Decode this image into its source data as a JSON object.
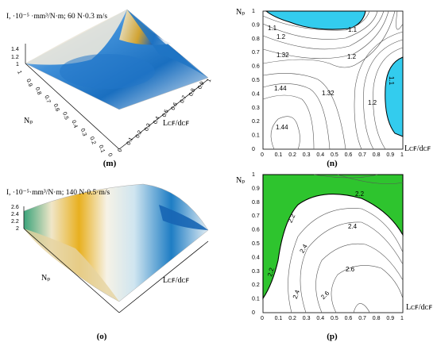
{
  "panels": {
    "m": {
      "title": "I, ·10⁻⁵ ·mm³/N·m; 60 N·0.3 m/s",
      "caption": "(m)",
      "z_ticks": [
        "1.4",
        "1.2",
        "1"
      ],
      "y_label": "Nₚ",
      "x_label": "Lᴄꜰ/dᴄꜰ",
      "y_ticks": [
        "1",
        "0.9",
        "0.8",
        "0.7",
        "0.6",
        "0.5",
        "0.4",
        "0.3",
        "0.2",
        "0.1",
        "0"
      ],
      "x_ticks": [
        "0",
        "0.1",
        "0.2",
        "0.3",
        "0.4",
        "0.5",
        "0.6",
        "0.7",
        "0.8",
        "0.9",
        "1"
      ]
    },
    "n": {
      "caption": "(n)",
      "y_label": "Nₚ",
      "x_label": "Lᴄꜰ/dᴄꜰ",
      "contour_labels": [
        "1.1",
        "1.1",
        "1.2",
        "1.32",
        "1.2",
        "1.44",
        "1.32",
        "1.2",
        "1.1",
        "1.44"
      ]
    },
    "o": {
      "title": "I, ·10⁻⁵·mm³/N·m; 140 N·0.5·m/s",
      "caption": "(o)",
      "z_ticks": [
        "2.6",
        "2.4",
        "2.2",
        "2"
      ],
      "y_label": "Nₚ",
      "x_label": "Lᴄꜰ/dᴄꜰ"
    },
    "p": {
      "caption": "(p)",
      "y_label": "Nₚ",
      "x_label": "Lᴄꜰ/dᴄꜰ",
      "contour_labels": [
        "2.2",
        "2.2",
        "2.4",
        "2.4",
        "2.2",
        "2.6",
        "2.4",
        "2.6"
      ]
    }
  },
  "contour_axis_ticks": [
    "0",
    "0.1",
    "0.2",
    "0.3",
    "0.4",
    "0.5",
    "0.6",
    "0.7",
    "0.8",
    "0.9",
    "1"
  ],
  "colors": {
    "cyan_fill": "#33ccee",
    "green_fill": "#2ec42e",
    "blue_surface": "#1a6fc0",
    "gold_surface": "#e8b020"
  }
}
